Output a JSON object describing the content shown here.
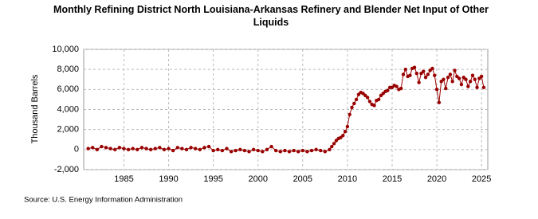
{
  "chart_data": {
    "type": "line",
    "title": "Monthly Refining District North Louisiana-Arkansas Refinery and Blender Net Input of Other Liquids",
    "y_label": "Thousand Barrels",
    "source": "Source: U.S. Energy Information Administration",
    "color": "#990000",
    "grid": true,
    "xlim": [
      1980.5,
      2025.7
    ],
    "xticks": [
      1985,
      1990,
      1995,
      2000,
      2005,
      2010,
      2015,
      2020,
      2025
    ],
    "ylim": [
      -2000,
      10000
    ],
    "yticks": [
      {
        "value": -2000,
        "label": "-2,000"
      },
      0,
      {
        "value": 2000,
        "label": "2,000"
      },
      {
        "value": 4000,
        "label": "4,000"
      },
      {
        "value": 6000,
        "label": "6,000"
      },
      {
        "value": 8000,
        "label": "8,000"
      },
      {
        "value": 10000,
        "label": "10,000"
      }
    ],
    "x": [
      1981,
      1981.5,
      1982,
      1982.5,
      1983,
      1983.5,
      1984,
      1984.5,
      1985,
      1985.5,
      1986,
      1986.5,
      1987,
      1987.5,
      1988,
      1988.5,
      1989,
      1989.5,
      1990,
      1990.5,
      1991,
      1991.5,
      1992,
      1992.5,
      1993,
      1993.5,
      1994,
      1994.5,
      1995,
      1995.5,
      1996,
      1996.5,
      1997,
      1997.5,
      1998,
      1998.5,
      1999,
      1999.5,
      2000,
      2000.5,
      2001,
      2001.5,
      2002,
      2002.5,
      2003,
      2003.5,
      2004,
      2004.5,
      2005,
      2005.5,
      2006,
      2006.5,
      2007,
      2007.5,
      2008,
      2008.25,
      2008.5,
      2008.75,
      2009,
      2009.25,
      2009.5,
      2009.75,
      2010,
      2010.25,
      2010.5,
      2010.75,
      2011,
      2011.25,
      2011.5,
      2011.75,
      2012,
      2012.25,
      2012.5,
      2012.75,
      2013,
      2013.25,
      2013.5,
      2013.75,
      2014,
      2014.25,
      2014.5,
      2014.75,
      2015,
      2015.25,
      2015.5,
      2015.75,
      2016,
      2016.25,
      2016.5,
      2016.75,
      2017,
      2017.25,
      2017.5,
      2017.75,
      2018,
      2018.25,
      2018.5,
      2018.75,
      2019,
      2019.25,
      2019.5,
      2019.75,
      2020,
      2020.25,
      2020.5,
      2020.75,
      2021,
      2021.25,
      2021.5,
      2021.75,
      2022,
      2022.25,
      2022.5,
      2022.75,
      2023,
      2023.25,
      2023.5,
      2023.75,
      2024,
      2024.25,
      2024.5,
      2024.75,
      2025,
      2025.25
    ],
    "values": [
      100,
      200,
      0,
      300,
      200,
      100,
      0,
      200,
      100,
      0,
      100,
      0,
      200,
      100,
      0,
      100,
      200,
      0,
      100,
      -100,
      200,
      100,
      0,
      200,
      100,
      0,
      200,
      300,
      -100,
      0,
      -100,
      100,
      -200,
      -100,
      0,
      -100,
      -200,
      0,
      -100,
      -200,
      0,
      300,
      -100,
      -200,
      -100,
      -200,
      -100,
      -200,
      -100,
      -200,
      -100,
      0,
      -100,
      -200,
      0,
      300,
      600,
      900,
      1100,
      1200,
      1400,
      1800,
      2300,
      3500,
      4200,
      4600,
      5000,
      5500,
      5700,
      5600,
      5400,
      5200,
      4800,
      4500,
      4400,
      4900,
      5000,
      5400,
      5600,
      5800,
      5900,
      6200,
      6200,
      6400,
      6300,
      6000,
      6100,
      7500,
      8000,
      7300,
      7400,
      8100,
      8200,
      7600,
      6700,
      7600,
      7800,
      7200,
      7500,
      7900,
      8100,
      7400,
      6000,
      4700,
      6800,
      7000,
      6100,
      7200,
      7500,
      6800,
      7900,
      7300,
      7100,
      6500,
      7200,
      7000,
      6300,
      6800,
      7400,
      7000,
      6200,
      7100,
      7300,
      6200
    ]
  }
}
